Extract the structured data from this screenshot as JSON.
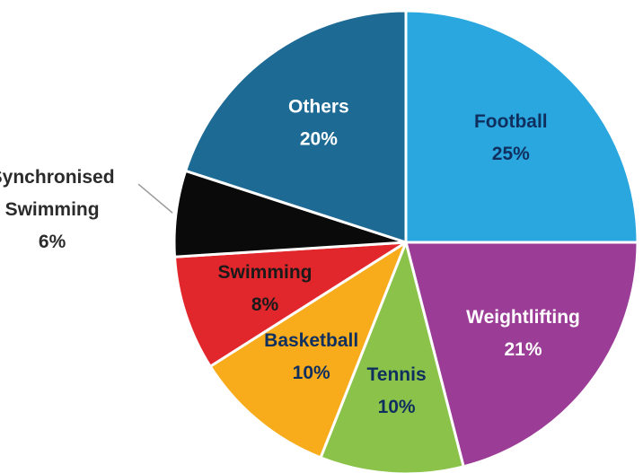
{
  "chart_data": {
    "type": "pie",
    "start_angle_deg": 0,
    "direction": "clockwise",
    "slices": [
      {
        "name": "Football",
        "value": 25,
        "label": "25%",
        "color": "#2aa7df",
        "text_color": "#0f2f5e"
      },
      {
        "name": "Weightlifting",
        "value": 21,
        "label": "21%",
        "color": "#9b3d97",
        "text_color": "#ffffff"
      },
      {
        "name": "Tennis",
        "value": 10,
        "label": "10%",
        "color": "#8bc34a",
        "text_color": "#0f2f5e"
      },
      {
        "name": "Basketball",
        "value": 10,
        "label": "10%",
        "color": "#f8ac1c",
        "text_color": "#0f2f5e"
      },
      {
        "name": "Swimming",
        "value": 8,
        "label": "8%",
        "color": "#e1262c",
        "text_color": "#1a1a1a"
      },
      {
        "name": "Synchronised Swimming",
        "value": 6,
        "label": "6%",
        "color": "#0a0a0a",
        "text_color": "#2b2b2b",
        "outside": true
      },
      {
        "name": "Others",
        "value": 20,
        "label": "20%",
        "color": "#1d6a94",
        "text_color": "#ffffff"
      }
    ]
  }
}
